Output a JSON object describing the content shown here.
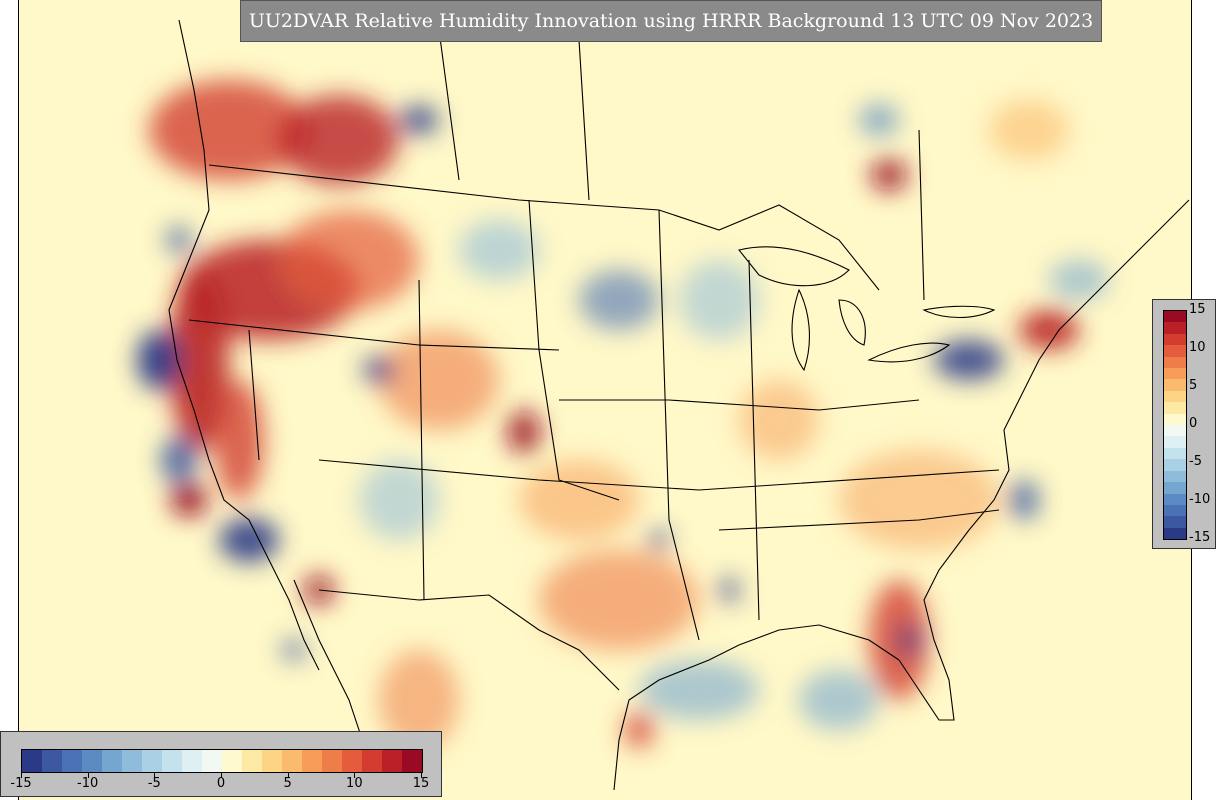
{
  "title": "UU2DVAR Relative Humidity Innovation using HRRR Background 13 UTC 09 Nov 2023",
  "colorbar": {
    "min": -15,
    "max": 15,
    "ticks_horizontal": [
      "-15",
      "-10",
      "-5",
      "0",
      "5",
      "10",
      "15"
    ],
    "ticks_vertical": [
      "15",
      "10",
      "5",
      "0",
      "-5",
      "-10",
      "-15"
    ],
    "colors": [
      "#2b3a87",
      "#3b58a0",
      "#4a72b4",
      "#5b8bc2",
      "#74a6d0",
      "#8fbcdb",
      "#a9d0e5",
      "#c4e2ee",
      "#def0f3",
      "#f2f8f2",
      "#fffacd",
      "#fde9a4",
      "#fdd485",
      "#fbbb6c",
      "#f79d57",
      "#ef7d49",
      "#e45c3c",
      "#d23d2f",
      "#b92126",
      "#9b0a24"
    ]
  },
  "map": {
    "region": "CONUS",
    "background_color": "#fff8c8"
  }
}
